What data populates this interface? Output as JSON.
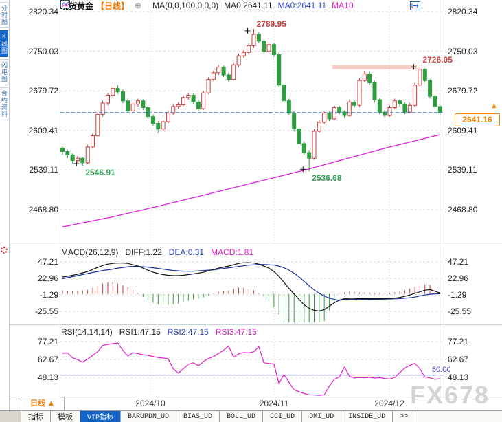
{
  "header": {
    "symbol": "现货黄金",
    "period": "【日线】",
    "add_icon": "⊕",
    "ma_settings": "MA(0,0,100,0,0,0)",
    "ma0": "MA0:2641.11",
    "ma0_blue": "MA0:2641.11",
    "ma10": "MA10"
  },
  "toolbar": {
    "icons": [
      "pan-crosshair-icon",
      "axis-zoom-icon",
      "chart-zoom-icon",
      "exit-right-icon"
    ]
  },
  "sidebar": {
    "tabs": [
      {
        "label": "分时图",
        "active": false
      },
      {
        "label": "K线图",
        "active": true
      },
      {
        "label": "闪电图",
        "active": false
      },
      {
        "label": "合约资料",
        "active": false
      }
    ]
  },
  "axes": {
    "main": [
      "2820.34",
      "2750.03",
      "2679.72",
      "2609.41",
      "2539.11",
      "2468.80"
    ],
    "macd": [
      "47.21",
      "22.96",
      "-1.29",
      "-25.55"
    ],
    "rsi": [
      "77.21",
      "62.67",
      "48.13"
    ]
  },
  "price_box": {
    "value": "2641.16",
    "arrow": "▲"
  },
  "macd_header": {
    "name": "MACD(26,12,9)",
    "diff": "DIFF:1.22",
    "dea": "DEA:0.31",
    "macd": "MACD:1.81"
  },
  "rsi_header": {
    "name": "RSI(14,14,14)",
    "rsi1": "RSI1:47.15",
    "rsi2": "RSI2:47.15",
    "rsi3": "RSI3:47.15"
  },
  "rsi_level_label": "50.00",
  "xaxis": {
    "period": "日线 ▲",
    "dates": [
      "2024/10",
      "2024/11",
      "2024/12"
    ]
  },
  "bottom_tabs": {
    "items": [
      "指标",
      "模板",
      "VIP指标",
      "BARUPDN_UD",
      "BIAS_UD",
      "BOLL_UD",
      "CCI_UD",
      "DMI_UD",
      "INSIDE_UD",
      ">>"
    ],
    "active_index": 2
  },
  "watermark": "FX678",
  "colors": {
    "up": "#cc3a3a",
    "down": "#2f9e41",
    "ma100": "#e21ee2",
    "diff_line": "#111111",
    "dea_line": "#16309c",
    "rsi_line": "#e01ec8",
    "price_accent": "#f08000",
    "current_line": "#3f7fd0",
    "level_line": "#8484dc",
    "grid": "#d9d9d9",
    "band": "#f3c8be",
    "active_tab": "#1565c8",
    "ann_green": "#2fa053"
  },
  "chart_data": {
    "type": "candlestick+indicators",
    "x_dates": [
      "2024/10",
      "2024/11",
      "2024/12"
    ],
    "panels": [
      {
        "type": "candlestick",
        "name": "现货黄金 日线",
        "ylim": [
          2468.8,
          2820.34
        ],
        "yticks": [
          2820.34,
          2750.03,
          2679.72,
          2609.41,
          2539.11,
          2468.8
        ],
        "current_price": 2641.16,
        "band": {
          "from_candle": 54,
          "to_candle": 70,
          "price": 2722
        },
        "annotations": [
          {
            "candle": 38,
            "price": 2789.95,
            "text": "2789.95",
            "kind": "high"
          },
          {
            "candle": 4,
            "price": 2546.91,
            "text": "2546.91",
            "kind": "low"
          },
          {
            "candle": 49,
            "price": 2536.68,
            "text": "2536.68",
            "kind": "low"
          },
          {
            "candle": 71,
            "price": 2726.05,
            "text": "2726.05",
            "kind": "high"
          }
        ],
        "ma100_waypoints": [
          [
            0,
            2438
          ],
          [
            10,
            2456
          ],
          [
            20,
            2477
          ],
          [
            30,
            2499
          ],
          [
            40,
            2521
          ],
          [
            49,
            2541
          ],
          [
            55,
            2556
          ],
          [
            60,
            2568
          ],
          [
            65,
            2580
          ],
          [
            70,
            2591
          ],
          [
            75,
            2602
          ]
        ],
        "candles": [
          [
            2578,
            2581,
            2566,
            2572
          ],
          [
            2572,
            2575,
            2560,
            2566
          ],
          [
            2566,
            2569,
            2551,
            2556
          ],
          [
            2556,
            2564,
            2552,
            2560
          ],
          [
            2560,
            2562,
            2546.91,
            2552
          ],
          [
            2552,
            2584,
            2550,
            2580
          ],
          [
            2580,
            2604,
            2577,
            2600
          ],
          [
            2600,
            2642,
            2598,
            2638
          ],
          [
            2638,
            2662,
            2634,
            2658
          ],
          [
            2658,
            2676,
            2654,
            2672
          ],
          [
            2672,
            2688,
            2668,
            2684
          ],
          [
            2684,
            2690,
            2674,
            2678
          ],
          [
            2678,
            2682,
            2658,
            2662
          ],
          [
            2662,
            2666,
            2640,
            2644
          ],
          [
            2644,
            2660,
            2641,
            2656
          ],
          [
            2656,
            2666,
            2652,
            2662
          ],
          [
            2662,
            2665,
            2646,
            2650
          ],
          [
            2650,
            2654,
            2630,
            2634
          ],
          [
            2634,
            2638,
            2618,
            2622
          ],
          [
            2622,
            2626,
            2605,
            2612
          ],
          [
            2612,
            2629,
            2609,
            2625
          ],
          [
            2625,
            2644,
            2622,
            2640
          ],
          [
            2640,
            2656,
            2637,
            2652
          ],
          [
            2652,
            2659,
            2648,
            2655
          ],
          [
            2655,
            2672,
            2652,
            2668
          ],
          [
            2668,
            2676,
            2664,
            2672
          ],
          [
            2672,
            2675,
            2656,
            2660
          ],
          [
            2660,
            2664,
            2644,
            2648
          ],
          [
            2648,
            2680,
            2646,
            2676
          ],
          [
            2676,
            2704,
            2674,
            2700
          ],
          [
            2700,
            2716,
            2697,
            2712
          ],
          [
            2712,
            2726,
            2708,
            2722
          ],
          [
            2722,
            2725,
            2704,
            2708
          ],
          [
            2708,
            2712,
            2696,
            2700
          ],
          [
            2700,
            2730,
            2698,
            2726
          ],
          [
            2726,
            2746,
            2722,
            2742
          ],
          [
            2742,
            2752,
            2738,
            2748
          ],
          [
            2748,
            2764,
            2744,
            2760
          ],
          [
            2760,
            2789.95,
            2756,
            2780
          ],
          [
            2780,
            2784,
            2764,
            2768
          ],
          [
            2768,
            2772,
            2746,
            2750
          ],
          [
            2750,
            2766,
            2747,
            2762
          ],
          [
            2762,
            2765,
            2740,
            2744
          ],
          [
            2744,
            2748,
            2686,
            2690
          ],
          [
            2690,
            2694,
            2658,
            2662
          ],
          [
            2662,
            2666,
            2636,
            2640
          ],
          [
            2640,
            2644,
            2608,
            2612
          ],
          [
            2612,
            2616,
            2582,
            2586
          ],
          [
            2586,
            2590,
            2566,
            2570
          ],
          [
            2570,
            2574,
            2536.68,
            2560
          ],
          [
            2560,
            2612,
            2557,
            2608
          ],
          [
            2608,
            2628,
            2605,
            2624
          ],
          [
            2624,
            2644,
            2621,
            2640
          ],
          [
            2640,
            2643,
            2626,
            2630
          ],
          [
            2630,
            2654,
            2627,
            2650
          ],
          [
            2650,
            2653,
            2638,
            2642
          ],
          [
            2642,
            2645,
            2632,
            2636
          ],
          [
            2636,
            2664,
            2634,
            2660
          ],
          [
            2660,
            2663,
            2650,
            2654
          ],
          [
            2654,
            2702,
            2652,
            2698
          ],
          [
            2698,
            2714,
            2695,
            2710
          ],
          [
            2710,
            2713,
            2690,
            2694
          ],
          [
            2694,
            2697,
            2660,
            2664
          ],
          [
            2664,
            2667,
            2638,
            2642
          ],
          [
            2642,
            2646,
            2632,
            2636
          ],
          [
            2636,
            2654,
            2634,
            2650
          ],
          [
            2650,
            2666,
            2647,
            2662
          ],
          [
            2662,
            2665,
            2652,
            2656
          ],
          [
            2656,
            2659,
            2638,
            2642
          ],
          [
            2642,
            2658,
            2640,
            2654
          ],
          [
            2654,
            2694,
            2652,
            2690
          ],
          [
            2690,
            2726.05,
            2688,
            2718
          ],
          [
            2718,
            2720,
            2694,
            2698
          ],
          [
            2698,
            2701,
            2666,
            2670
          ],
          [
            2670,
            2673,
            2648,
            2652
          ],
          [
            2652,
            2655,
            2637,
            2641.16
          ]
        ]
      },
      {
        "type": "macd",
        "yticks": [
          47.21,
          22.96,
          -1.29,
          -25.55
        ],
        "diff": [
          25,
          26,
          27.5,
          29,
          31,
          33,
          36,
          39,
          42,
          44,
          45,
          45.5,
          45.5,
          45,
          43,
          41,
          38,
          35,
          32,
          30,
          28.5,
          27.5,
          27,
          27,
          27.5,
          28.5,
          29.5,
          30.5,
          32,
          34,
          36,
          38,
          39.5,
          41,
          43,
          45,
          46,
          46,
          45.5,
          44,
          41,
          38,
          33,
          26,
          17,
          8,
          0,
          -8,
          -16,
          -21,
          -24,
          -25,
          -23,
          -18,
          -13,
          -9,
          -7,
          -6.5,
          -6.5,
          -7,
          -7,
          -7,
          -7,
          -7,
          -7,
          -6.5,
          -6,
          -5,
          -3.5,
          -1.5,
          1,
          3,
          5.5,
          6.5,
          4,
          1.22
        ],
        "dea": [
          22.5,
          24,
          25.5,
          27,
          28.5,
          30,
          31.5,
          33,
          34.5,
          35.5,
          36.5,
          38,
          39,
          40,
          40.5,
          40.5,
          40,
          39.5,
          38.5,
          37.5,
          36.5,
          35.5,
          34.5,
          34,
          33.5,
          33.5,
          33.5,
          34,
          34.5,
          35,
          35.5,
          36.5,
          37.5,
          38.5,
          39.5,
          40.5,
          41.5,
          42.5,
          43,
          43.5,
          43.5,
          43,
          42.5,
          41,
          38.5,
          35,
          30.5,
          25,
          18.5,
          12,
          6,
          1,
          -3,
          -6,
          -8,
          -9.5,
          -8,
          -8,
          -8,
          -8,
          -8,
          -8,
          -7.8,
          -7.8,
          -7.6,
          -7.4,
          -7.2,
          -6.8,
          -6.2,
          -5.5,
          -4.5,
          -3,
          -1.5,
          -0.3,
          0.1,
          0.31
        ],
        "hist_rule": "2*(diff-dea)"
      },
      {
        "type": "line",
        "name": "RSI",
        "yticks": [
          77.21,
          62.67,
          48.13
        ],
        "level_line": 50.0,
        "rsi": [
          67.7,
          68,
          64,
          62.5,
          60.5,
          63,
          66,
          69,
          74,
          75,
          75.5,
          76.1,
          70,
          65.4,
          68.2,
          67.5,
          66.5,
          66,
          65,
          64.3,
          63.8,
          63.2,
          55,
          51.5,
          55,
          58.7,
          60,
          57.5,
          61,
          63.5,
          65,
          67.5,
          70.3,
          73.5,
          64.5,
          67.3,
          68.3,
          68,
          69,
          73,
          60,
          59.5,
          59,
          43,
          50.5,
          44,
          38,
          36.5,
          35,
          34,
          33.8,
          33.5,
          34,
          41,
          46.5,
          48.5,
          56.5,
          49,
          47.6,
          48,
          47.8,
          48.2,
          47.5,
          48,
          47.2,
          46.8,
          48,
          52,
          55.5,
          58,
          59.5,
          55,
          48.4,
          47.7,
          46.5,
          47.15
        ]
      }
    ]
  }
}
